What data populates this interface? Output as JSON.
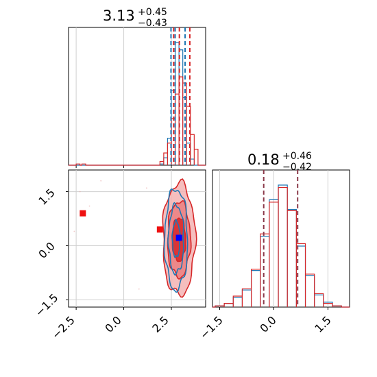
{
  "chart_data": [
    {
      "type": "histogram",
      "panel": "top-left marginal",
      "title": {
        "main": "3.13",
        "sup": "+0.45",
        "sub": "−0.43"
      },
      "xlim": [
        -2.9,
        4.3
      ],
      "series": [
        {
          "name": "",
          "color": "#1f77b4",
          "bins": [
            1.9,
            2.1,
            2.3,
            2.5,
            2.7,
            2.9,
            3.1,
            3.3,
            3.5,
            3.7
          ],
          "counts": [
            1,
            6,
            22,
            61,
            100,
            94,
            55,
            18,
            5,
            0
          ]
        },
        {
          "name": "",
          "color": "#d62728",
          "bins": [
            -2.5,
            -2.2,
            1.9,
            2.1,
            2.3,
            2.5,
            2.7,
            2.9,
            3.1,
            3.3,
            3.5,
            3.7
          ],
          "counts": [
            1,
            1,
            3,
            10,
            18,
            38,
            58,
            72,
            67,
            48,
            25,
            13
          ]
        }
      ],
      "quantile_lines": [
        {
          "color": "#1f77b4",
          "values": [
            2.48,
            2.7,
            3.22
          ]
        },
        {
          "color": "#d62728",
          "values": [
            2.62,
            2.92,
            3.47
          ]
        }
      ]
    },
    {
      "type": "histogram",
      "panel": "bottom-right marginal",
      "title": {
        "main": "0.18",
        "sup": "+0.46",
        "sub": "−0.42"
      },
      "xlim": [
        -1.7,
        2.1
      ],
      "xticks": [
        "−1.5",
        "0.0",
        "1.5"
      ],
      "series": [
        {
          "name": "",
          "color": "#1f77b4",
          "x": [
            -1.5,
            -1.25,
            -1.0,
            -0.75,
            -0.5,
            -0.25,
            0.0,
            0.25,
            0.5,
            0.75,
            1.0,
            1.25,
            1.5,
            1.75
          ],
          "counts": [
            1,
            3,
            8,
            14,
            30,
            58,
            88,
            100,
            80,
            50,
            26,
            10,
            4,
            1
          ]
        },
        {
          "name": "",
          "color": "#d62728",
          "x": [
            -1.5,
            -1.25,
            -1.0,
            -0.75,
            -0.5,
            -0.25,
            0.0,
            0.25,
            0.5,
            0.75,
            1.0,
            1.25,
            1.5,
            1.75
          ],
          "counts": [
            1,
            3,
            9,
            15,
            31,
            60,
            86,
            98,
            79,
            52,
            27,
            11,
            3,
            1
          ]
        }
      ],
      "quantile_lines": [
        {
          "color": "#8b3a4a",
          "values": [
            -0.28,
            0.66
          ]
        }
      ]
    },
    {
      "type": "contour",
      "panel": "bottom-left 2D",
      "xlim": [
        -2.9,
        4.3
      ],
      "ylim": [
        -1.7,
        2.1
      ],
      "xticks": [
        "−2.5",
        "0.0",
        "2.5"
      ],
      "yticks": [
        "−1.5",
        "0.0",
        "1.5"
      ],
      "contours": [
        {
          "color": "#d62728",
          "center": [
            2.9,
            0.18
          ],
          "levels": [
            [
              0.85,
              1.55
            ],
            [
              0.6,
              1.05
            ],
            [
              0.35,
              0.6
            ]
          ]
        },
        {
          "color": "#1f77b4",
          "center": [
            2.75,
            0.18
          ],
          "levels": [
            [
              0.6,
              1.4
            ],
            [
              0.4,
              0.95
            ],
            [
              0.2,
              0.5
            ]
          ]
        }
      ],
      "markers": [
        {
          "color": "#ee1111",
          "shape": "square",
          "x": -2.15,
          "y": 0.9
        },
        {
          "color": "#ee1111",
          "shape": "square",
          "x": 1.9,
          "y": 0.45
        },
        {
          "color": "#0000ff",
          "shape": "square",
          "x": 2.9,
          "y": 0.22
        }
      ]
    }
  ]
}
